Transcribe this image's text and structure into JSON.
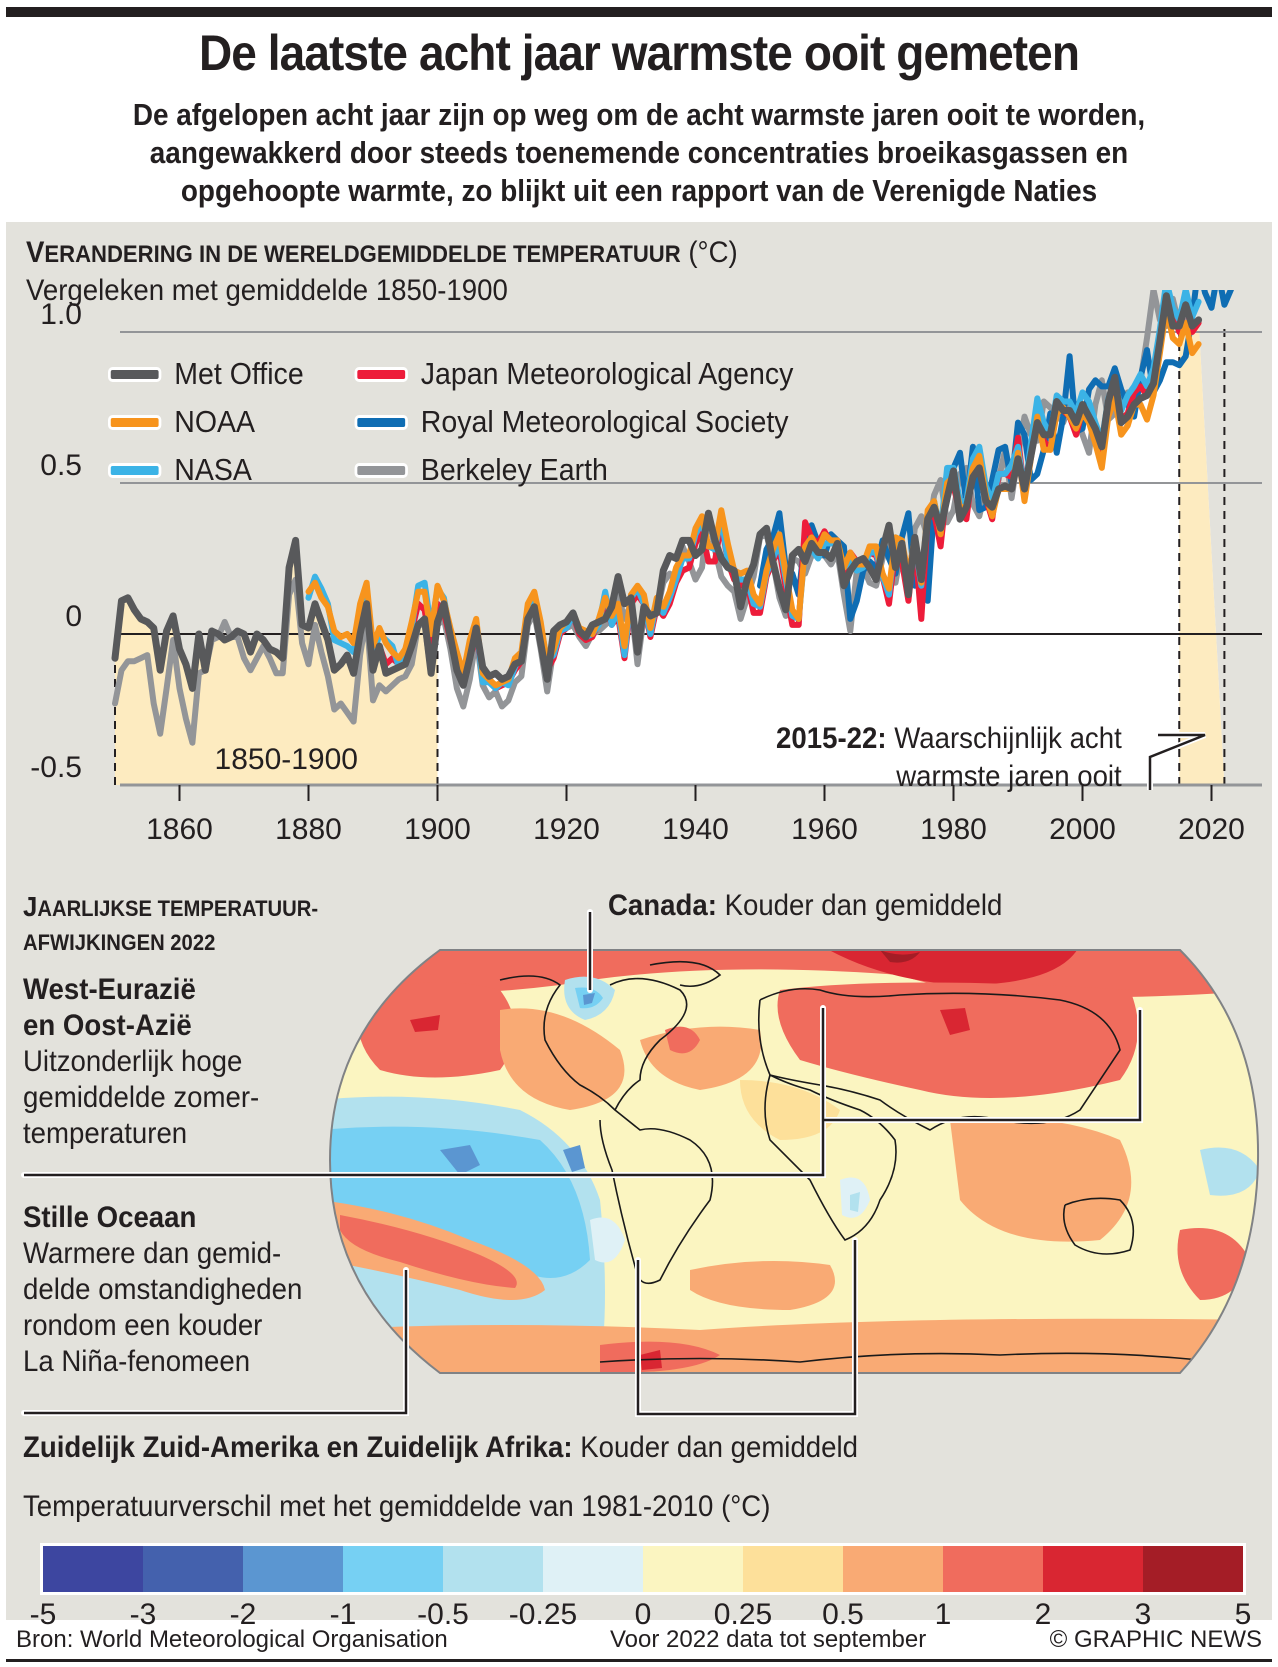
{
  "header": {
    "title": "De laatste acht jaar warmste ooit gemeten",
    "subtitle_lines": [
      "De afgelopen acht jaar zijn op weg om de acht warmste jaren ooit te worden,",
      "aangewakkerd door steeds toenemende concentraties broeikasgassen en",
      "opgehoopte warmte, zo blijkt uit een rapport van de Verenigde Naties"
    ]
  },
  "chart_section": {
    "title_first_letter": "V",
    "title_rest": "ERANDERING IN DE WERELDGEMIDDELDE TEMPERATUUR",
    "title_unit": "(°C)",
    "subtitle": "Vergeleken met gemiddelde 1850-1900",
    "baseline_label": "1850-1900",
    "annotation_bold": "2015-22:",
    "annotation_line1": "Waarschijnlijk acht",
    "annotation_line2": "warmste jaren ooit"
  },
  "chart_data": {
    "type": "line",
    "title": "Verandering in de wereldgemiddelde temperatuur (°C)",
    "subtitle": "Vergeleken met gemiddelde 1850-1900",
    "xlabel": "",
    "ylabel": "",
    "xlim": [
      1850,
      2022
    ],
    "ylim": [
      -0.5,
      1.0
    ],
    "grid": true,
    "legend_placement": "top-left",
    "x_ticks": [
      "1860",
      "1880",
      "1900",
      "1920",
      "1940",
      "1960",
      "1980",
      "2000",
      "2020"
    ],
    "y_ticks": [
      "-0.5",
      "0",
      "0.5",
      "1.0"
    ],
    "shaded_ranges": [
      {
        "from": 1850,
        "to": 1900,
        "label": "1850-1900"
      },
      {
        "from": 2015,
        "to": 2022,
        "label": "2015-22"
      }
    ],
    "series": [
      {
        "name": "Met Office",
        "color": "#58595b",
        "start": 1850,
        "values": [
          -0.08,
          0.11,
          0.12,
          0.08,
          0.05,
          0.04,
          0.02,
          -0.12,
          0.01,
          0.06,
          -0.05,
          -0.1,
          -0.18,
          0.0,
          -0.12,
          0.01,
          0.0,
          -0.02,
          -0.01,
          0.01,
          0.0,
          -0.06,
          0.0,
          -0.02,
          -0.05,
          -0.06,
          -0.08,
          0.22,
          0.31,
          0.03,
          0.02,
          0.1,
          0.04,
          -0.02,
          -0.12,
          -0.1,
          -0.07,
          -0.13,
          0.0,
          0.1,
          -0.12,
          -0.04,
          -0.13,
          -0.12,
          -0.11,
          -0.1,
          -0.04,
          0.03,
          0.05,
          -0.13,
          0.04,
          0.1,
          -0.01,
          -0.12,
          -0.17,
          -0.08,
          0.02,
          -0.11,
          -0.14,
          -0.13,
          -0.15,
          -0.14,
          -0.1,
          -0.09,
          0.05,
          0.09,
          -0.03,
          -0.15,
          0.01,
          0.03,
          0.04,
          0.07,
          0.01,
          -0.01,
          0.03,
          0.04,
          0.05,
          0.09,
          0.19,
          0.1,
          0.12,
          -0.06,
          0.09,
          0.06,
          0.07,
          0.21,
          0.26,
          0.25,
          0.31,
          0.31,
          0.26,
          0.28,
          0.4,
          0.31,
          0.25,
          0.22,
          0.21,
          0.09,
          0.18,
          0.23,
          0.33,
          0.35,
          0.24,
          0.15,
          0.08,
          0.26,
          0.28,
          0.24,
          0.3,
          0.27,
          0.27,
          0.25,
          0.3,
          0.16,
          0.21,
          0.24,
          0.25,
          0.22,
          0.18,
          0.28,
          0.36,
          0.22,
          0.3,
          0.13,
          0.32,
          0.18,
          0.38,
          0.42,
          0.35,
          0.45,
          0.54,
          0.38,
          0.42,
          0.52,
          0.55,
          0.44,
          0.42,
          0.48,
          0.49,
          0.48,
          0.58,
          0.48,
          0.59,
          0.7,
          0.66,
          0.66,
          0.77,
          0.74,
          0.74,
          0.7,
          0.76,
          0.72,
          0.68,
          0.62,
          0.77,
          0.85,
          0.7,
          0.72,
          0.76,
          0.78,
          0.79,
          0.83,
          0.97,
          1.12,
          1.02,
          1.02,
          1.09,
          1.02,
          1.04
        ]
      },
      {
        "name": "NOAA",
        "color": "#f7941d",
        "start": 1880,
        "values": [
          0.14,
          0.17,
          0.12,
          0.09,
          0.01,
          -0.01,
          0.0,
          -0.03,
          0.1,
          0.17,
          -0.04,
          0.02,
          -0.03,
          -0.06,
          -0.08,
          -0.05,
          0.04,
          0.14,
          0.14,
          0.0,
          0.16,
          0.11,
          0.02,
          -0.06,
          -0.13,
          -0.02,
          0.05,
          -0.13,
          -0.15,
          -0.17,
          -0.16,
          -0.15,
          -0.08,
          -0.06,
          0.1,
          0.14,
          0.04,
          -0.1,
          -0.05,
          0.02,
          0.04,
          0.07,
          0.02,
          0.01,
          0.0,
          0.05,
          0.12,
          0.06,
          0.1,
          -0.04,
          0.13,
          0.16,
          0.13,
          0.02,
          0.12,
          0.09,
          0.14,
          0.22,
          0.26,
          0.26,
          0.35,
          0.39,
          0.29,
          0.29,
          0.41,
          0.3,
          0.21,
          0.2,
          0.21,
          0.13,
          0.1,
          0.21,
          0.28,
          0.33,
          0.2,
          0.08,
          0.05,
          0.29,
          0.32,
          0.28,
          0.33,
          0.31,
          0.31,
          0.22,
          0.27,
          0.23,
          0.23,
          0.29,
          0.29,
          0.2,
          0.15,
          0.32,
          0.31,
          0.19,
          0.32,
          0.17,
          0.41,
          0.44,
          0.33,
          0.5,
          0.52,
          0.42,
          0.42,
          0.55,
          0.59,
          0.46,
          0.39,
          0.48,
          0.48,
          0.48,
          0.6,
          0.44,
          0.58,
          0.72,
          0.61,
          0.61,
          0.73,
          0.75,
          0.72,
          0.68,
          0.73,
          0.7,
          0.63,
          0.55,
          0.72,
          0.78,
          0.66,
          0.69,
          0.76,
          0.76,
          0.71,
          0.79,
          0.93,
          1.08,
          0.98,
          0.96,
          1.03,
          0.93,
          0.96
        ]
      },
      {
        "name": "NASA",
        "color": "#3bb3e6",
        "start": 1880,
        "values": [
          0.12,
          0.19,
          0.15,
          0.1,
          -0.02,
          -0.03,
          -0.04,
          -0.06,
          0.06,
          0.16,
          -0.08,
          0.0,
          -0.02,
          -0.04,
          -0.11,
          -0.08,
          0.02,
          0.16,
          0.17,
          0.02,
          0.15,
          0.12,
          0.0,
          -0.08,
          -0.14,
          -0.04,
          0.03,
          -0.16,
          -0.16,
          -0.18,
          -0.16,
          -0.17,
          -0.11,
          -0.07,
          0.09,
          0.13,
          0.03,
          -0.09,
          -0.07,
          0.01,
          0.02,
          0.06,
          0.01,
          -0.01,
          0.0,
          0.03,
          0.14,
          0.03,
          0.08,
          -0.07,
          0.12,
          0.15,
          0.1,
          0.0,
          0.11,
          0.07,
          0.12,
          0.18,
          0.25,
          0.25,
          0.33,
          0.37,
          0.29,
          0.28,
          0.39,
          0.24,
          0.21,
          0.18,
          0.18,
          0.1,
          0.09,
          0.2,
          0.25,
          0.3,
          0.18,
          0.06,
          0.05,
          0.28,
          0.28,
          0.25,
          0.3,
          0.3,
          0.3,
          0.22,
          0.24,
          0.21,
          0.22,
          0.27,
          0.27,
          0.19,
          0.13,
          0.32,
          0.28,
          0.18,
          0.3,
          0.16,
          0.4,
          0.44,
          0.34,
          0.55,
          0.55,
          0.44,
          0.44,
          0.58,
          0.62,
          0.49,
          0.44,
          0.53,
          0.53,
          0.56,
          0.62,
          0.47,
          0.63,
          0.78,
          0.7,
          0.66,
          0.79,
          0.77,
          0.77,
          0.73,
          0.8,
          0.77,
          0.7,
          0.64,
          0.78,
          0.84,
          0.74,
          0.79,
          0.82,
          0.86,
          0.82,
          0.88,
          1.01,
          1.17,
          1.08,
          1.04,
          1.14,
          1.05,
          1.1
        ]
      },
      {
        "name": "Japan Meteorological Agency",
        "color": "#ed1c3a",
        "start": 1891,
        "values": [
          -0.04,
          -0.1,
          -0.08,
          -0.1,
          -0.05,
          0.01,
          0.1,
          0.08,
          -0.05,
          0.1,
          0.07,
          -0.02,
          -0.1,
          -0.16,
          -0.08,
          0.0,
          -0.14,
          -0.15,
          -0.18,
          -0.17,
          -0.16,
          -0.12,
          -0.09,
          0.05,
          0.11,
          0.0,
          -0.12,
          -0.08,
          0.0,
          0.02,
          0.06,
          0.0,
          -0.02,
          -0.01,
          0.04,
          0.1,
          0.03,
          0.06,
          -0.08,
          0.1,
          0.13,
          0.1,
          -0.01,
          0.09,
          0.06,
          0.1,
          0.17,
          0.21,
          0.22,
          0.3,
          0.34,
          0.24,
          0.24,
          0.37,
          0.24,
          0.18,
          0.16,
          0.17,
          0.07,
          0.07,
          0.19,
          0.24,
          0.28,
          0.15,
          0.03,
          0.03,
          0.37,
          0.32,
          0.3,
          0.34,
          0.3,
          0.31,
          0.18,
          0.27,
          0.24,
          0.24,
          0.27,
          0.26,
          0.19,
          0.1,
          0.28,
          0.24,
          0.11,
          0.3,
          0.05,
          0.38,
          0.4,
          0.29,
          0.49,
          0.49,
          0.4,
          0.38,
          0.55,
          0.6,
          0.45,
          0.38,
          0.53,
          0.53,
          0.52,
          0.65,
          0.46,
          0.6,
          0.75,
          0.64,
          0.61,
          0.75,
          0.74,
          0.72,
          0.66,
          0.74,
          0.7,
          0.65,
          0.57,
          0.76,
          0.82,
          0.71,
          0.73,
          0.8,
          0.82,
          0.79,
          0.85,
          0.99,
          1.14,
          1.06,
          1.0,
          1.1,
          1.0,
          1.03
        ]
      },
      {
        "name": "Royal Meteorological Society",
        "color": "#0f6db3",
        "start": 1950,
        "values": [
          0.16,
          0.28,
          0.32,
          0.4,
          0.22,
          0.2,
          0.13,
          0.32,
          0.36,
          0.3,
          0.26,
          0.33,
          0.31,
          0.29,
          0.05,
          0.11,
          0.21,
          0.24,
          0.22,
          0.31,
          0.25,
          0.2,
          0.32,
          0.4,
          0.16,
          0.25,
          0.11,
          0.42,
          0.35,
          0.47,
          0.55,
          0.6,
          0.43,
          0.62,
          0.41,
          0.42,
          0.51,
          0.61,
          0.62,
          0.5,
          0.7,
          0.66,
          0.51,
          0.53,
          0.61,
          0.73,
          0.6,
          0.72,
          0.92,
          0.67,
          0.68,
          0.81,
          0.84,
          0.82,
          0.82,
          0.88,
          0.81,
          0.76,
          0.72,
          0.85,
          0.94,
          0.8,
          0.84,
          0.9,
          0.9,
          0.89,
          0.92,
          1.05,
          1.22,
          1.13,
          1.08,
          1.2,
          1.09,
          1.14
        ]
      },
      {
        "name": "Berkeley Earth",
        "color": "#939598",
        "start": 1850,
        "values": [
          -0.23,
          -0.12,
          -0.09,
          -0.09,
          -0.08,
          -0.07,
          -0.23,
          -0.33,
          -0.18,
          -0.02,
          -0.18,
          -0.28,
          -0.36,
          -0.13,
          -0.12,
          -0.02,
          -0.01,
          0.04,
          -0.01,
          -0.01,
          -0.08,
          -0.12,
          -0.08,
          -0.04,
          -0.08,
          -0.13,
          -0.13,
          0.13,
          0.18,
          -0.03,
          -0.1,
          0.03,
          -0.06,
          -0.14,
          -0.25,
          -0.23,
          -0.26,
          -0.29,
          -0.07,
          0.06,
          -0.22,
          -0.17,
          -0.19,
          -0.17,
          -0.15,
          -0.14,
          -0.1,
          0.03,
          0.03,
          -0.13,
          0.03,
          0.05,
          -0.05,
          -0.18,
          -0.24,
          -0.15,
          -0.01,
          -0.17,
          -0.21,
          -0.19,
          -0.24,
          -0.22,
          -0.16,
          -0.14,
          0.03,
          0.07,
          -0.05,
          -0.19,
          -0.05,
          0.0,
          0.02,
          0.03,
          -0.01,
          -0.04,
          0.0,
          0.01,
          0.03,
          0.05,
          0.13,
          0.05,
          0.1,
          -0.1,
          0.06,
          0.04,
          0.07,
          0.17,
          0.2,
          0.18,
          0.29,
          0.24,
          0.18,
          0.22,
          0.4,
          0.28,
          0.19,
          0.16,
          0.14,
          0.05,
          0.12,
          0.19,
          0.32,
          0.33,
          0.24,
          0.12,
          0.06,
          0.25,
          0.24,
          0.2,
          0.26,
          0.26,
          0.26,
          0.23,
          0.27,
          0.13,
          0.01,
          0.21,
          0.22,
          0.17,
          0.16,
          0.25,
          0.32,
          0.17,
          0.29,
          0.16,
          0.35,
          0.39,
          0.32,
          0.46,
          0.51,
          0.37,
          0.41,
          0.53,
          0.55,
          0.43,
          0.39,
          0.48,
          0.49,
          0.51,
          0.61,
          0.45,
          0.59,
          0.72,
          0.66,
          0.64,
          0.77,
          0.75,
          0.73,
          0.7,
          0.76,
          0.73,
          0.66,
          0.6,
          0.76,
          0.84,
          0.71,
          0.73,
          0.78,
          0.8,
          0.78,
          0.84,
          0.98,
          1.14,
          1.04,
          1.02,
          1.11,
          1.02,
          1.05
        ]
      }
    ]
  },
  "map_section": {
    "title_line1_first": "J",
    "title_line1_rest": "AARLIJKSE TEMPERATUUR-",
    "title_line2": "AFWIJKINGEN 2022",
    "callouts": {
      "canada_bold": "Canada:",
      "canada_text": "Kouder dan gemiddeld",
      "eurasia_bold_1": "West-Eurazië",
      "eurasia_bold_2": "en Oost-Azië",
      "eurasia_text": [
        "Uitzonderlijk hoge",
        "gemiddelde zomer-",
        "temperaturen"
      ],
      "pacific_bold": "Stille Oceaan",
      "pacific_text": [
        "Warmere dan gemid-",
        "delde omstandigheden",
        "rondom een kouder",
        "La Niña-fenomeen"
      ],
      "south_bold": "Zuidelijk Zuid-Amerika en Zuidelijk Afrika:",
      "south_text": "Kouder dan gemiddeld"
    }
  },
  "color_scale": {
    "label": "Temperatuurverschil met het gemiddelde van 1981-2010 (°C)",
    "ticks": [
      "-5",
      "-3",
      "-2",
      "-1",
      "-0.5",
      "-0.25",
      "0",
      "0.25",
      "0.5",
      "1",
      "2",
      "3",
      "5"
    ],
    "colors": [
      "#3d46a0",
      "#4461ad",
      "#5b96d1",
      "#76d0f3",
      "#b2e1ee",
      "#dff1f6",
      "#fbf5c1",
      "#fde09a",
      "#f9aa74",
      "#f06c5d",
      "#d92632",
      "#a41d26"
    ]
  },
  "footer": {
    "source": "Bron: World Meteorological Organisation",
    "note": "Voor 2022 data tot september",
    "credit": "© GRAPHIC NEWS"
  },
  "colors": {
    "panel_bg": "#e3e2dc",
    "highlight_fill": "#fdebc0",
    "text": "#231f20"
  }
}
